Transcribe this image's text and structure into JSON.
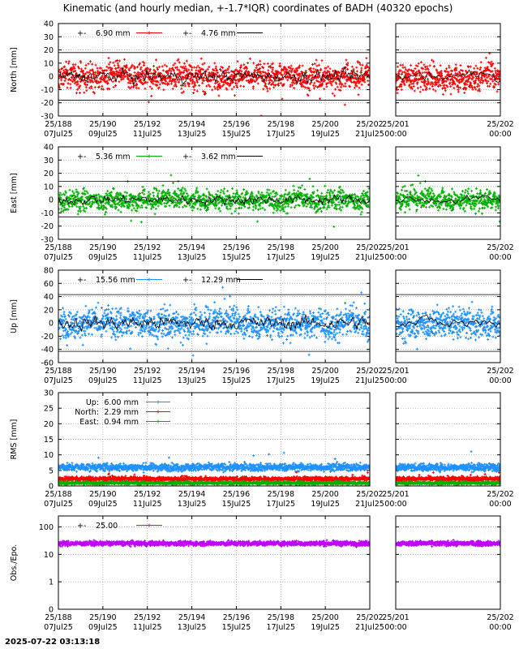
{
  "title": "Kinematic (and hourly median, +-1.7*IQR) coordinates of BADH (40320 epochs)",
  "timestamp": "2025-07-22 03:13:18",
  "x_ticks_main": [
    {
      "top": "25/188",
      "bottom": "07Jul25"
    },
    {
      "top": "25/190",
      "bottom": "09Jul25"
    },
    {
      "top": "25/192",
      "bottom": "11Jul25"
    },
    {
      "top": "25/194",
      "bottom": "13Jul25"
    },
    {
      "top": "25/196",
      "bottom": "15Jul25"
    },
    {
      "top": "25/198",
      "bottom": "17Jul25"
    },
    {
      "top": "25/200",
      "bottom": "19Jul25"
    },
    {
      "top": "25/202",
      "bottom": "21Jul25"
    }
  ],
  "x_ticks_zoom": [
    {
      "top": "25/201",
      "bottom": "00:00"
    },
    {
      "top": "25/202",
      "bottom": "00:00"
    }
  ],
  "chart_data": [
    {
      "id": "north",
      "type": "scatter",
      "ylabel": "North [mm]",
      "ylim": [
        -30,
        40
      ],
      "yticks": [
        -30,
        -20,
        -10,
        0,
        10,
        20,
        30,
        40
      ],
      "iqr_band": [
        -18,
        18
      ],
      "noise": 7,
      "color": "#ff0000",
      "legend": [
        {
          "label": "6.90 mm",
          "color": "#ff0000",
          "marker": true
        },
        {
          "label": "4.76 mm",
          "color": "#000000",
          "marker": false
        }
      ]
    },
    {
      "id": "east",
      "type": "scatter",
      "ylabel": "East [mm]",
      "ylim": [
        -30,
        40
      ],
      "yticks": [
        -30,
        -20,
        -10,
        0,
        10,
        20,
        30,
        40
      ],
      "iqr_band": [
        -13,
        14
      ],
      "noise": 5.5,
      "color": "#00b000",
      "legend": [
        {
          "label": "5.36 mm",
          "color": "#00b000",
          "marker": true
        },
        {
          "label": "3.62 mm",
          "color": "#000000",
          "marker": false
        }
      ]
    },
    {
      "id": "up",
      "type": "scatter",
      "ylabel": "Up [mm]",
      "ylim": [
        -60,
        80
      ],
      "yticks": [
        -60,
        -40,
        -20,
        0,
        20,
        40,
        60,
        80
      ],
      "iqr_band": [
        -43,
        43
      ],
      "noise": 16,
      "color": "#1e90ff",
      "legend": [
        {
          "label": "15.56 mm",
          "color": "#1e90ff",
          "marker": true
        },
        {
          "label": "12.29 mm",
          "color": "#000000",
          "marker": false
        }
      ]
    },
    {
      "id": "rms",
      "type": "scatter",
      "ylabel": "RMS [mm]",
      "ylim": [
        0,
        30
      ],
      "yticks": [
        0,
        5,
        10,
        15,
        20,
        25,
        30
      ],
      "series": [
        {
          "name": "Up:",
          "value_label": "6.00 mm",
          "mean": 6.0,
          "color": "#1e90ff"
        },
        {
          "name": "North:",
          "value_label": "2.29 mm",
          "mean": 2.29,
          "color": "#ff0000"
        },
        {
          "name": "East:",
          "value_label": "0.94 mm",
          "mean": 0.94,
          "color": "#00b000"
        }
      ]
    },
    {
      "id": "obs",
      "type": "scatter",
      "ylabel": "Obs./Epo.",
      "log": true,
      "ytick_labels": [
        "0",
        "1",
        "10",
        "100"
      ],
      "mean": 25.0,
      "color": "#c000ff",
      "legend": [
        {
          "label": "25.00",
          "color": "#c000ff",
          "marker": true
        }
      ]
    }
  ]
}
